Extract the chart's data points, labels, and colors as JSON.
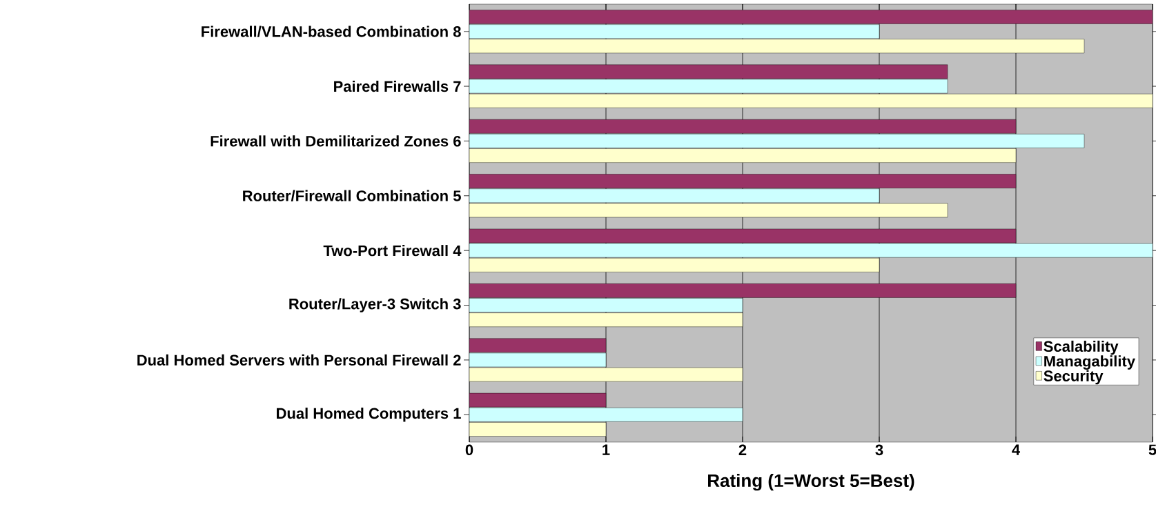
{
  "chart_data": {
    "type": "bar",
    "orientation": "horizontal",
    "xlabel": "Rating (1=Worst  5=Best)",
    "categories": [
      "Firewall/VLAN-based Combination 8",
      "Paired Firewalls 7",
      "Firewall with Demilitarized Zones 6",
      "Router/Firewall Combination 5",
      "Two-Port Firewall 4",
      "Router/Layer-3 Switch 3",
      "Dual Homed Servers with Personal Firewall 2",
      "Dual Homed Computers 1"
    ],
    "series": [
      {
        "name": "Scalability",
        "color": "#993366",
        "values": [
          5,
          3.5,
          4,
          4,
          4,
          4,
          1,
          1
        ]
      },
      {
        "name": "Managability",
        "color": "#ccffff",
        "values": [
          3,
          3.5,
          4.5,
          3,
          5,
          2,
          1,
          2
        ]
      },
      {
        "name": "Security",
        "color": "#ffffcc",
        "values": [
          4.5,
          5,
          4,
          3.5,
          3,
          2,
          2,
          1
        ]
      }
    ],
    "xlim": [
      0,
      5
    ],
    "xticks": [
      0,
      1,
      2,
      3,
      4,
      5
    ],
    "grid": "x",
    "legend": "bottom right"
  }
}
